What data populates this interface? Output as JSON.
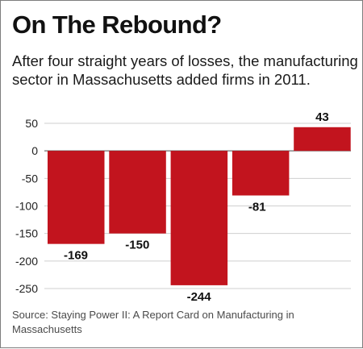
{
  "header": {
    "title": "On The Rebound?",
    "subtitle": "After four straight years of losses, the manufacturing sector in Massachusetts added firms in 2011."
  },
  "footer": {
    "source": "Source: Staying Power II: A Report Card on Manufacturing in Massachusetts"
  },
  "colors": {
    "bar": "#c2141e",
    "grid": "#cfcfcf",
    "zero_line": "#4a4a4a"
  },
  "chart_data": {
    "type": "bar",
    "title": "On The Rebound?",
    "subtitle": "After four straight years of losses, the manufacturing sector in Massachusetts added firms in 2011.",
    "categories": [
      "",
      "",
      "",
      "",
      ""
    ],
    "values": [
      -169,
      -150,
      -244,
      -81,
      43
    ],
    "data_labels": [
      "-169",
      "-150",
      "-244",
      "-81",
      "43"
    ],
    "xlabel": "",
    "ylabel": "",
    "ylim": [
      -250,
      50
    ],
    "yticks": [
      50,
      0,
      -50,
      -100,
      -150,
      -200,
      -250
    ],
    "ytick_labels": [
      "50",
      "0",
      "-50",
      "-100",
      "-150",
      "-200",
      "-250"
    ],
    "grid": true,
    "legend": "none"
  }
}
